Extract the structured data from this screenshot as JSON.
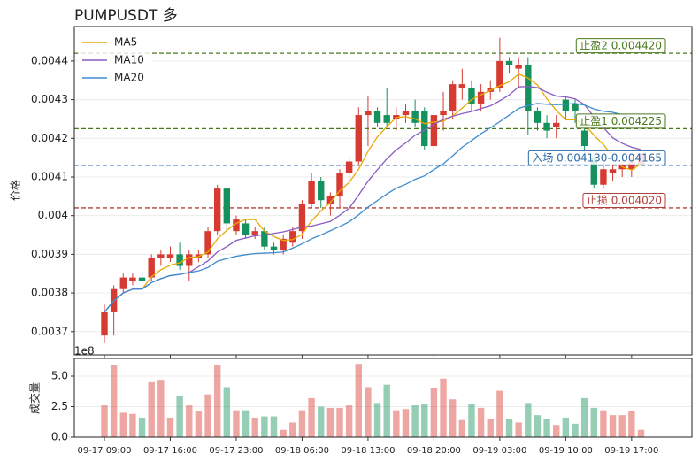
{
  "chart_data": [
    {
      "type": "candlestick",
      "title": "PUMPUSDT  多",
      "ylabel": "价格",
      "up_color": "#d63a30",
      "down_color": "#14915c",
      "grid": true,
      "legend": "upper left",
      "ylim": [
        0.00364,
        0.004489
      ],
      "yticks": [
        0.0037,
        0.0038,
        0.0039,
        0.004,
        0.0041,
        0.0042,
        0.0043,
        0.0044
      ],
      "offset_text": "1e8",
      "open": [
        0.00369,
        0.00375,
        0.00381,
        0.00383,
        0.00384,
        0.00384,
        0.00389,
        0.00389,
        0.0039,
        0.00387,
        0.00389,
        0.0039,
        0.00396,
        0.00407,
        0.00396,
        0.00398,
        0.00395,
        0.00396,
        0.00392,
        0.00391,
        0.00393,
        0.00396,
        0.00403,
        0.00409,
        0.00403,
        0.00405,
        0.00411,
        0.00414,
        0.00426,
        0.00427,
        0.00426,
        0.00425,
        0.00426,
        0.00427,
        0.00427,
        0.00418,
        0.00426,
        0.00427,
        0.00433,
        0.00433,
        0.00429,
        0.00432,
        0.00433,
        0.0044,
        0.00438,
        0.00439,
        0.00427,
        0.00424,
        0.00423,
        0.0043,
        0.00429,
        0.00422,
        0.00415,
        0.00408,
        0.00411,
        0.00412,
        0.00412,
        0.00413
      ],
      "high": [
        0.00377,
        0.00382,
        0.00385,
        0.00385,
        0.00385,
        0.0039,
        0.00391,
        0.00392,
        0.00393,
        0.00391,
        0.00391,
        0.00397,
        0.00408,
        0.00407,
        0.004,
        0.00399,
        0.00397,
        0.00397,
        0.00393,
        0.00395,
        0.00397,
        0.00404,
        0.00411,
        0.0041,
        0.00406,
        0.00412,
        0.00415,
        0.00428,
        0.00431,
        0.00428,
        0.00433,
        0.00428,
        0.00429,
        0.0043,
        0.00428,
        0.00427,
        0.00432,
        0.00435,
        0.00438,
        0.00435,
        0.00434,
        0.00435,
        0.00446,
        0.00441,
        0.00441,
        0.00441,
        0.00428,
        0.00426,
        0.00426,
        0.00431,
        0.0043,
        0.00423,
        0.00416,
        0.00413,
        0.00413,
        0.00414,
        0.00415,
        0.0042
      ],
      "low": [
        0.00367,
        0.00369,
        0.0038,
        0.00382,
        0.00382,
        0.00383,
        0.00387,
        0.00388,
        0.00386,
        0.00383,
        0.00388,
        0.00389,
        0.00395,
        0.00396,
        0.00395,
        0.00394,
        0.00394,
        0.00391,
        0.0039,
        0.0039,
        0.00392,
        0.00394,
        0.00402,
        0.00402,
        0.004,
        0.00402,
        0.00408,
        0.00413,
        0.00418,
        0.00423,
        0.00423,
        0.00422,
        0.00424,
        0.00423,
        0.00417,
        0.00417,
        0.00422,
        0.00425,
        0.0043,
        0.00427,
        0.00427,
        0.0043,
        0.00432,
        0.00437,
        0.00433,
        0.00421,
        0.00422,
        0.0042,
        0.0042,
        0.00425,
        0.00424,
        0.00416,
        0.00407,
        0.00407,
        0.00409,
        0.0041,
        0.0041,
        0.00412
      ],
      "close": [
        0.00375,
        0.00381,
        0.00384,
        0.00384,
        0.00383,
        0.00389,
        0.0039,
        0.0039,
        0.00387,
        0.0039,
        0.0039,
        0.00396,
        0.00407,
        0.00398,
        0.00399,
        0.00395,
        0.00396,
        0.00392,
        0.00391,
        0.00394,
        0.00396,
        0.00403,
        0.00409,
        0.00404,
        0.00405,
        0.00411,
        0.00414,
        0.00426,
        0.00427,
        0.00424,
        0.00424,
        0.00426,
        0.00427,
        0.00424,
        0.00418,
        0.00426,
        0.00427,
        0.00434,
        0.00434,
        0.00429,
        0.00432,
        0.00433,
        0.0044,
        0.00439,
        0.00439,
        0.00427,
        0.00424,
        0.00422,
        0.00424,
        0.00427,
        0.00427,
        0.00418,
        0.00408,
        0.00412,
        0.00412,
        0.00413,
        0.00414,
        0.00416
      ],
      "series": [
        {
          "name": "MA5",
          "color": "#eaa900",
          "values": [
            0.00375,
            0.00378,
            0.0038,
            0.00381,
            0.00381,
            0.003842,
            0.00386,
            0.003872,
            0.003878,
            0.003892,
            0.003894,
            0.003906,
            0.00394,
            0.003962,
            0.00398,
            0.00399,
            0.00399,
            0.00396,
            0.003946,
            0.003936,
            0.003938,
            0.003952,
            0.003986,
            0.004012,
            0.004034,
            0.004064,
            0.004086,
            0.00412,
            0.004166,
            0.004204,
            0.00423,
            0.004254,
            0.004256,
            0.00425,
            0.004238,
            0.004242,
            0.004244,
            0.004258,
            0.004278,
            0.0043,
            0.004312,
            0.004324,
            0.004336,
            0.004346,
            0.004366,
            0.004356,
            0.004338,
            0.004302,
            0.004272,
            0.004248,
            0.004248,
            0.004236,
            0.004208,
            0.004184,
            0.004154,
            0.004126,
            0.004118,
            0.004134
          ]
        },
        {
          "name": "MA10",
          "color": "#8a5cc2",
          "values": [
            0.00375,
            0.00378,
            0.0038,
            0.00381,
            0.00381,
            0.003827,
            0.003837,
            0.003845,
            0.003848,
            0.003853,
            0.003868,
            0.003883,
            0.003906,
            0.00392,
            0.003936,
            0.003942,
            0.003948,
            0.00395,
            0.003954,
            0.003958,
            0.003964,
            0.003971,
            0.003973,
            0.003979,
            0.003985,
            0.004001,
            0.004019,
            0.004053,
            0.004089,
            0.004119,
            0.004147,
            0.00417,
            0.004188,
            0.004208,
            0.004221,
            0.004236,
            0.004249,
            0.004257,
            0.004264,
            0.004269,
            0.004277,
            0.004284,
            0.004297,
            0.004312,
            0.004333,
            0.004334,
            0.004331,
            0.004319,
            0.004309,
            0.004307,
            0.004302,
            0.004287,
            0.004255,
            0.004228,
            0.004201,
            0.004187,
            0.004177,
            0.004171
          ]
        },
        {
          "name": "MA20",
          "color": "#3d8bd0",
          "values": [
            0.00375,
            0.00378,
            0.0038,
            0.00381,
            0.00381,
            0.003827,
            0.003837,
            0.003845,
            0.003848,
            0.003853,
            0.003857,
            0.003866,
            0.003882,
            0.003889,
            0.003895,
            0.003899,
            0.003902,
            0.003903,
            0.003904,
            0.003906,
            0.003916,
            0.003927,
            0.00394,
            0.00395,
            0.003961,
            0.003972,
            0.003984,
            0.004002,
            0.004022,
            0.004039,
            0.004056,
            0.004071,
            0.004081,
            0.004094,
            0.004103,
            0.004119,
            0.004134,
            0.004155,
            0.004177,
            0.004194,
            0.004212,
            0.004227,
            0.004243,
            0.00426,
            0.004277,
            0.004285,
            0.00429,
            0.004288,
            0.004287,
            0.004288,
            0.00429,
            0.004286,
            0.004276,
            0.00427,
            0.004267,
            0.004261,
            0.004254,
            0.004245
          ]
        }
      ],
      "levels": [
        {
          "label": "止盈2 0.004420",
          "value": 0.00442,
          "color": "#4a7a1c"
        },
        {
          "label": "止盈1 0.004225",
          "value": 0.004225,
          "color": "#4a7a1c"
        },
        {
          "label": "入场 0.004130-0.004165",
          "value": 0.00413,
          "color": "#2c6aa8"
        },
        {
          "label": "止损 0.004020",
          "value": 0.00402,
          "color": "#b0403c"
        }
      ]
    },
    {
      "type": "bar",
      "ylabel": "成交量",
      "categories": [
        "09-17 09:00",
        null,
        null,
        null,
        null,
        null,
        null,
        "09-17 16:00",
        null,
        null,
        null,
        null,
        null,
        null,
        "09-17 23:00",
        null,
        null,
        null,
        null,
        null,
        null,
        "09-18 06:00",
        null,
        null,
        null,
        null,
        null,
        null,
        "09-18 13:00",
        null,
        null,
        null,
        null,
        null,
        null,
        "09-18 20:00",
        null,
        null,
        null,
        null,
        null,
        null,
        "09-19 03:00",
        null,
        null,
        null,
        null,
        null,
        null,
        "09-19 10:00",
        null,
        null,
        null,
        null,
        null,
        null,
        "09-19 17:00",
        null
      ],
      "values": [
        2.6,
        5.9,
        2.0,
        1.9,
        1.6,
        4.5,
        4.7,
        1.6,
        3.4,
        2.6,
        2.1,
        3.5,
        5.9,
        4.1,
        2.2,
        2.2,
        1.6,
        1.7,
        1.7,
        0.6,
        1.2,
        2.2,
        3.2,
        2.5,
        2.4,
        2.4,
        2.6,
        6.0,
        4.1,
        2.8,
        4.3,
        2.2,
        2.3,
        2.6,
        2.7,
        4.0,
        4.8,
        3.1,
        1.4,
        2.7,
        2.4,
        1.5,
        3.8,
        1.5,
        1.2,
        2.8,
        1.8,
        1.5,
        1.0,
        1.6,
        1.1,
        3.2,
        2.4,
        2.2,
        1.8,
        1.8,
        2.1,
        0.6
      ],
      "ylim": [
        0,
        6.45
      ],
      "yticks": [
        {
          "value": 0,
          "label": "0.0"
        },
        {
          "value": 2.5,
          "label": "2.5"
        },
        {
          "value": 5,
          "label": "5.0"
        }
      ],
      "grid": true
    }
  ]
}
